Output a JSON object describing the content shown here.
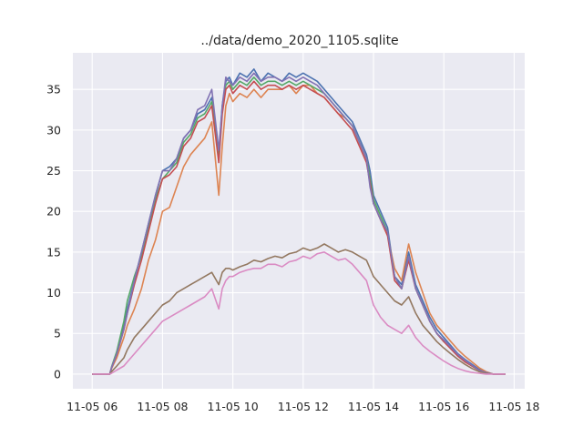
{
  "chart_data": {
    "type": "line",
    "title": "../data/demo_2020_1105.sqlite",
    "xlabel": "",
    "ylabel": "",
    "x_unit": "hour of day (2020-11-05)",
    "xlim": [
      5.45,
      18.3
    ],
    "ylim": [
      -1.8,
      39.5
    ],
    "x_ticks": [
      6,
      8,
      10,
      12,
      14,
      16,
      18
    ],
    "x_tick_labels": [
      "11-05 06",
      "11-05 08",
      "11-05 10",
      "11-05 12",
      "11-05 14",
      "11-05 16",
      "11-05 18"
    ],
    "y_ticks": [
      0,
      5,
      10,
      15,
      20,
      25,
      30,
      35
    ],
    "y_tick_labels": [
      "0",
      "5",
      "10",
      "15",
      "20",
      "25",
      "30",
      "35"
    ],
    "grid": true,
    "background": "#eaeaf2",
    "legend": "none",
    "series": [
      {
        "color": "#4c72b0",
        "x": [
          6.0,
          6.5,
          6.55,
          6.7,
          6.9,
          7.0,
          7.2,
          7.4,
          7.6,
          7.8,
          8.0,
          8.2,
          8.4,
          8.6,
          8.8,
          9.0,
          9.2,
          9.4,
          9.6,
          9.7,
          9.8,
          9.9,
          10.0,
          10.2,
          10.4,
          10.6,
          10.8,
          11.0,
          11.2,
          11.4,
          11.6,
          11.8,
          12.0,
          12.2,
          12.4,
          12.6,
          12.8,
          13.0,
          13.2,
          13.4,
          13.6,
          13.8,
          13.9,
          14.0,
          14.2,
          14.4,
          14.6,
          14.8,
          15.0,
          15.2,
          15.4,
          15.6,
          15.8,
          16.0,
          16.2,
          16.4,
          16.6,
          16.8,
          17.0,
          17.2,
          17.4,
          17.6,
          17.75
        ],
        "y": [
          0,
          0,
          0.8,
          2.5,
          6,
          8,
          11.5,
          15,
          18.5,
          22,
          25,
          25.5,
          26.5,
          29,
          30,
          32,
          32.5,
          34,
          27,
          33,
          36,
          36.5,
          35.5,
          37,
          36.5,
          37.5,
          36,
          37,
          36.5,
          36,
          37,
          36.5,
          37,
          36.5,
          36,
          35,
          34,
          33,
          32,
          31,
          29,
          27,
          25,
          22,
          20,
          18,
          12,
          11,
          15,
          11,
          9,
          7,
          5.5,
          4.5,
          3.5,
          2.5,
          1.8,
          1.2,
          0.6,
          0.2,
          0,
          0,
          0
        ]
      },
      {
        "color": "#dd8452",
        "x": [
          6.0,
          6.5,
          6.55,
          6.7,
          6.9,
          7.0,
          7.2,
          7.4,
          7.6,
          7.8,
          8.0,
          8.2,
          8.4,
          8.6,
          8.8,
          9.0,
          9.2,
          9.4,
          9.6,
          9.7,
          9.8,
          9.9,
          10.0,
          10.2,
          10.4,
          10.6,
          10.8,
          11.0,
          11.2,
          11.4,
          11.6,
          11.8,
          12.0,
          12.2,
          12.4,
          12.6,
          12.8,
          13.0,
          13.2,
          13.4,
          13.6,
          13.8,
          13.9,
          14.0,
          14.2,
          14.4,
          14.6,
          14.8,
          15.0,
          15.2,
          15.4,
          15.6,
          15.8,
          16.0,
          16.2,
          16.4,
          16.6,
          16.8,
          17.0,
          17.2,
          17.4,
          17.6,
          17.75
        ],
        "y": [
          0,
          0,
          0.7,
          2,
          4.5,
          6,
          8,
          10.5,
          14,
          16.5,
          20,
          20.5,
          23,
          25.5,
          27,
          28,
          29,
          31,
          22,
          28,
          33,
          34.5,
          33.5,
          34.5,
          34,
          35,
          34,
          35,
          35,
          35,
          35.5,
          34.5,
          35.5,
          35.5,
          34.5,
          34,
          33,
          32,
          31.5,
          30.5,
          28.5,
          26.5,
          24,
          21,
          19,
          17,
          13,
          11.5,
          16,
          12.5,
          10,
          7.5,
          6,
          5,
          4,
          3,
          2.2,
          1.5,
          0.8,
          0.3,
          0,
          0,
          0
        ]
      },
      {
        "color": "#55a868",
        "x": [
          6.0,
          6.5,
          6.55,
          6.7,
          6.9,
          7.0,
          7.2,
          7.4,
          7.6,
          7.8,
          8.0,
          8.2,
          8.4,
          8.6,
          8.8,
          9.0,
          9.2,
          9.4,
          9.6,
          9.7,
          9.8,
          9.9,
          10.0,
          10.2,
          10.4,
          10.6,
          10.8,
          11.0,
          11.2,
          11.4,
          11.6,
          11.8,
          12.0,
          12.2,
          12.4,
          12.6,
          12.8,
          13.0,
          13.2,
          13.4,
          13.6,
          13.8,
          13.9,
          14.0,
          14.2,
          14.4,
          14.6,
          14.8,
          15.0,
          15.2,
          15.4,
          15.6,
          15.8,
          16.0,
          16.2,
          16.4,
          16.6,
          16.8,
          17.0,
          17.2,
          17.4,
          17.6,
          17.75
        ],
        "y": [
          0,
          0,
          0.9,
          2.8,
          6.5,
          9,
          12,
          14.5,
          18,
          21.5,
          24,
          25,
          26,
          28.5,
          29.5,
          31.5,
          32,
          33.5,
          26.5,
          32.5,
          35.5,
          36,
          35,
          36,
          35.5,
          36.5,
          35.5,
          36,
          36,
          35.5,
          36,
          35.5,
          36,
          35.5,
          35,
          34.5,
          33.5,
          32.5,
          31.5,
          30.5,
          28.5,
          26.5,
          24,
          21.5,
          19.5,
          17.5,
          12,
          10.5,
          14.5,
          10.5,
          8.5,
          6.5,
          5,
          4,
          3.2,
          2.3,
          1.6,
          1.0,
          0.5,
          0.2,
          0,
          0,
          0
        ]
      },
      {
        "color": "#c44e52",
        "x": [
          6.0,
          6.5,
          6.55,
          6.7,
          6.9,
          7.0,
          7.2,
          7.4,
          7.6,
          7.8,
          8.0,
          8.2,
          8.4,
          8.6,
          8.8,
          9.0,
          9.2,
          9.4,
          9.6,
          9.7,
          9.8,
          9.9,
          10.0,
          10.2,
          10.4,
          10.6,
          10.8,
          11.0,
          11.2,
          11.4,
          11.6,
          11.8,
          12.0,
          12.2,
          12.4,
          12.6,
          12.8,
          13.0,
          13.2,
          13.4,
          13.6,
          13.8,
          13.9,
          14.0,
          14.2,
          14.4,
          14.6,
          14.8,
          15.0,
          15.2,
          15.4,
          15.6,
          15.8,
          16.0,
          16.2,
          16.4,
          16.6,
          16.8,
          17.0,
          17.2,
          17.4,
          17.6,
          17.75
        ],
        "y": [
          0,
          0,
          0.8,
          2.4,
          5.5,
          7.5,
          11,
          14,
          17.5,
          21,
          24,
          24.5,
          25.5,
          28,
          29,
          31,
          31.5,
          33,
          26,
          32,
          35,
          35.5,
          34.5,
          35.5,
          35,
          36,
          35,
          35.5,
          35.5,
          35,
          35.5,
          35,
          35.5,
          35,
          34.5,
          34,
          33,
          32,
          31,
          30,
          28,
          26,
          23.5,
          21,
          19,
          17,
          11.5,
          10.5,
          14,
          10.5,
          8.5,
          6.5,
          5,
          4,
          3.1,
          2.2,
          1.5,
          1.0,
          0.5,
          0.2,
          0,
          0,
          0
        ]
      },
      {
        "color": "#8172b3",
        "x": [
          6.0,
          6.5,
          6.55,
          6.7,
          6.9,
          7.0,
          7.2,
          7.4,
          7.6,
          7.8,
          8.0,
          8.2,
          8.4,
          8.6,
          8.8,
          9.0,
          9.2,
          9.4,
          9.6,
          9.7,
          9.8,
          9.9,
          10.0,
          10.2,
          10.4,
          10.6,
          10.8,
          11.0,
          11.2,
          11.4,
          11.6,
          11.8,
          12.0,
          12.2,
          12.4,
          12.6,
          12.8,
          13.0,
          13.2,
          13.4,
          13.6,
          13.8,
          13.9,
          14.0,
          14.2,
          14.4,
          14.6,
          14.8,
          15.0,
          15.2,
          15.4,
          15.6,
          15.8,
          16.0,
          16.2,
          16.4,
          16.6,
          16.8,
          17.0,
          17.2,
          17.4,
          17.6,
          17.75
        ],
        "y": [
          0,
          0,
          0.8,
          2.5,
          5.5,
          7.5,
          11.5,
          15,
          18.5,
          22,
          25,
          25,
          26.5,
          29,
          30,
          32.5,
          33,
          35,
          27.5,
          33,
          36.5,
          36,
          35.5,
          36.5,
          36,
          37,
          36,
          36.5,
          36.5,
          36,
          36.5,
          36,
          36.5,
          36,
          35.5,
          34.5,
          33.5,
          32.5,
          31.5,
          30.5,
          28.5,
          26.5,
          23,
          21,
          19,
          17.5,
          12,
          10.5,
          14.5,
          10.5,
          8.5,
          6.5,
          5,
          4.2,
          3.3,
          2.4,
          1.7,
          1.1,
          0.5,
          0.2,
          0,
          0,
          0
        ]
      },
      {
        "color": "#937860",
        "x": [
          6.0,
          6.5,
          6.55,
          6.7,
          6.9,
          7.0,
          7.2,
          7.4,
          7.6,
          7.8,
          8.0,
          8.2,
          8.4,
          8.6,
          8.8,
          9.0,
          9.2,
          9.4,
          9.6,
          9.7,
          9.8,
          9.9,
          10.0,
          10.2,
          10.4,
          10.6,
          10.8,
          11.0,
          11.2,
          11.4,
          11.6,
          11.8,
          12.0,
          12.2,
          12.4,
          12.6,
          12.8,
          13.0,
          13.2,
          13.4,
          13.6,
          13.8,
          13.9,
          14.0,
          14.2,
          14.4,
          14.6,
          14.8,
          15.0,
          15.2,
          15.4,
          15.6,
          15.8,
          16.0,
          16.2,
          16.4,
          16.6,
          16.8,
          17.0,
          17.2,
          17.4,
          17.6,
          17.75
        ],
        "y": [
          0,
          0,
          0.3,
          1,
          2,
          3,
          4.5,
          5.5,
          6.5,
          7.5,
          8.5,
          9,
          10,
          10.5,
          11,
          11.5,
          12,
          12.5,
          11,
          12.5,
          13,
          13,
          12.8,
          13.2,
          13.5,
          14,
          13.8,
          14.2,
          14.5,
          14.3,
          14.8,
          15,
          15.5,
          15.2,
          15.5,
          16,
          15.5,
          15,
          15.3,
          15,
          14.5,
          14,
          13,
          12,
          11,
          10,
          9,
          8.5,
          9.5,
          7.5,
          6,
          5,
          4,
          3.2,
          2.5,
          1.8,
          1.2,
          0.7,
          0.3,
          0.1,
          0,
          0,
          0
        ]
      },
      {
        "color": "#da8bc3",
        "x": [
          6.0,
          6.5,
          6.55,
          6.7,
          6.9,
          7.0,
          7.2,
          7.4,
          7.6,
          7.8,
          8.0,
          8.2,
          8.4,
          8.6,
          8.8,
          9.0,
          9.2,
          9.4,
          9.6,
          9.7,
          9.8,
          9.9,
          10.0,
          10.2,
          10.4,
          10.6,
          10.8,
          11.0,
          11.2,
          11.4,
          11.6,
          11.8,
          12.0,
          12.2,
          12.4,
          12.6,
          12.8,
          13.0,
          13.2,
          13.4,
          13.6,
          13.8,
          13.9,
          14.0,
          14.2,
          14.4,
          14.6,
          14.8,
          15.0,
          15.2,
          15.4,
          15.6,
          15.8,
          16.0,
          16.2,
          16.4,
          16.6,
          16.8,
          17.0,
          17.2,
          17.4,
          17.6,
          17.75
        ],
        "y": [
          0,
          0,
          0.1,
          0.5,
          1,
          1.5,
          2.5,
          3.5,
          4.5,
          5.5,
          6.5,
          7,
          7.5,
          8,
          8.5,
          9,
          9.5,
          10.5,
          8,
          10.5,
          11.5,
          12,
          12,
          12.5,
          12.8,
          13,
          13,
          13.5,
          13.5,
          13.2,
          13.8,
          14,
          14.5,
          14.2,
          14.8,
          15,
          14.5,
          14,
          14.2,
          13.5,
          12.5,
          11.5,
          10,
          8.5,
          7,
          6,
          5.5,
          5,
          6,
          4.5,
          3.5,
          2.8,
          2.2,
          1.6,
          1.1,
          0.7,
          0.4,
          0.2,
          0.1,
          0,
          0,
          0,
          0
        ]
      }
    ]
  }
}
